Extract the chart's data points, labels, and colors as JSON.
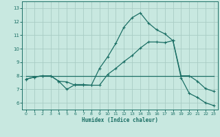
{
  "xlabel": "Humidex (Indice chaleur)",
  "bg_color": "#c8e8e0",
  "grid_color": "#a8ccc4",
  "line_color": "#1a6e64",
  "xlim": [
    -0.5,
    23.5
  ],
  "ylim": [
    5.5,
    13.5
  ],
  "xticks": [
    0,
    1,
    2,
    3,
    4,
    5,
    6,
    7,
    8,
    9,
    10,
    11,
    12,
    13,
    14,
    15,
    16,
    17,
    18,
    19,
    20,
    21,
    22,
    23
  ],
  "yticks": [
    6,
    7,
    8,
    9,
    10,
    11,
    12,
    13
  ],
  "line1_x": [
    0,
    1,
    2,
    3,
    4,
    5,
    6,
    7,
    8,
    9,
    10,
    11,
    12,
    13,
    14,
    15,
    16,
    17,
    18,
    19,
    20,
    21,
    22,
    23
  ],
  "line1_y": [
    7.75,
    7.9,
    8.0,
    8.0,
    7.6,
    7.55,
    7.3,
    7.3,
    7.3,
    8.55,
    9.4,
    10.4,
    11.6,
    12.3,
    12.65,
    11.9,
    11.4,
    11.1,
    10.6,
    7.85,
    6.7,
    6.4,
    6.0,
    5.8
  ],
  "line2_x": [
    0,
    1,
    2,
    3,
    4,
    5,
    6,
    7,
    8,
    9,
    10,
    11,
    12,
    13,
    14,
    15,
    16,
    17,
    18,
    19,
    20,
    21,
    22,
    23
  ],
  "line2_y": [
    7.75,
    7.9,
    8.0,
    8.0,
    7.6,
    7.0,
    7.35,
    7.35,
    7.3,
    7.3,
    8.1,
    8.55,
    9.05,
    9.5,
    10.05,
    10.5,
    10.5,
    10.45,
    10.6,
    8.0,
    8.0,
    7.6,
    7.05,
    6.85
  ],
  "line3_x": [
    0,
    23
  ],
  "line3_y": [
    8.0,
    8.0
  ]
}
